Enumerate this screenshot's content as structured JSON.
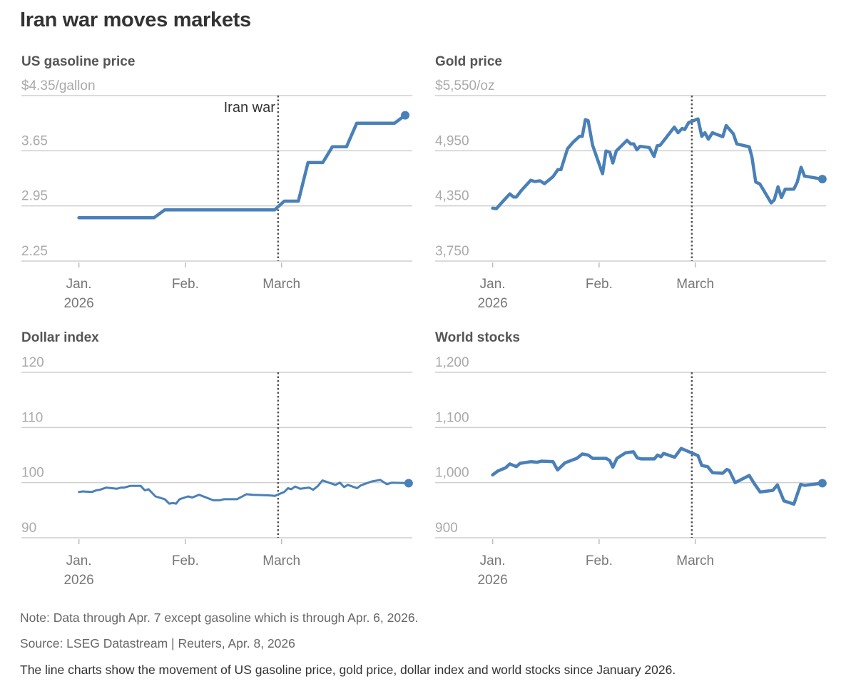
{
  "title": "Iran war moves markets",
  "accent_color": "#4a80b8",
  "event": {
    "label": "Iran war",
    "day": 58
  },
  "x_axis": {
    "ticks": [
      {
        "day": 0,
        "line1": "Jan.",
        "line2": "2026"
      },
      {
        "day": 31,
        "line1": "Feb.",
        "line2": ""
      },
      {
        "day": 59,
        "line1": "March",
        "line2": ""
      }
    ],
    "unit": "days since Jan. 1, 2026"
  },
  "chart_data": [
    {
      "type": "line",
      "title": "US gasoline price",
      "ylabel": "$/gallon",
      "ylim": [
        2.25,
        4.35
      ],
      "yticks": [
        4.35,
        3.65,
        2.95,
        2.25
      ],
      "ytick_labels": [
        "$4.35/gallon",
        "3.65",
        "2.95",
        "2.25"
      ],
      "show_event_label": true,
      "series": [
        {
          "name": "US gasoline price",
          "points": [
            [
              0,
              2.8
            ],
            [
              21.9,
              2.8
            ],
            [
              25,
              2.9
            ],
            [
              57,
              2.9
            ],
            [
              59.8,
              3.01
            ],
            [
              63.9,
              3.01
            ],
            [
              66.7,
              3.5
            ],
            [
              71,
              3.5
            ],
            [
              73.8,
              3.7
            ],
            [
              77.9,
              3.7
            ],
            [
              80.9,
              4.0
            ],
            [
              91.9,
              4.0
            ],
            [
              95,
              4.1
            ]
          ]
        }
      ]
    },
    {
      "type": "line",
      "title": "Gold price",
      "ylabel": "$/oz",
      "ylim": [
        3750,
        5550
      ],
      "yticks": [
        5550,
        4950,
        4350,
        3750
      ],
      "ytick_labels": [
        "$5,550/oz",
        "4,950",
        "4,350",
        "3,750"
      ],
      "show_event_label": false,
      "series": [
        {
          "name": "Gold price",
          "points": [
            [
              0,
              4325
            ],
            [
              1.1,
              4320
            ],
            [
              3.1,
              4403
            ],
            [
              5,
              4480
            ],
            [
              6.1,
              4447
            ],
            [
              6.9,
              4447
            ],
            [
              8.4,
              4519
            ],
            [
              11.1,
              4628
            ],
            [
              12.3,
              4615
            ],
            [
              13.8,
              4623
            ],
            [
              15.1,
              4592
            ],
            [
              17.6,
              4669
            ],
            [
              19,
              4745
            ],
            [
              19.9,
              4745
            ],
            [
              21.8,
              4972
            ],
            [
              23.4,
              5042
            ],
            [
              25.3,
              5107
            ],
            [
              26.1,
              5107
            ],
            [
              27,
              5288
            ],
            [
              27.8,
              5278
            ],
            [
              29.1,
              5011
            ],
            [
              32,
              4700
            ],
            [
              33,
              4947
            ],
            [
              34.1,
              4934
            ],
            [
              35,
              4817
            ],
            [
              36,
              4947
            ],
            [
              39.1,
              5063
            ],
            [
              40.2,
              5024
            ],
            [
              41.1,
              5024
            ],
            [
              42,
              4960
            ],
            [
              42.9,
              4998
            ],
            [
              45.6,
              4985
            ],
            [
              47,
              4887
            ],
            [
              47.9,
              5003
            ],
            [
              48.8,
              5011
            ],
            [
              52.9,
              5206
            ],
            [
              54,
              5146
            ],
            [
              55.2,
              5193
            ],
            [
              55.9,
              5180
            ],
            [
              57.1,
              5257
            ],
            [
              59.8,
              5296
            ],
            [
              60.9,
              5107
            ],
            [
              61.8,
              5146
            ],
            [
              62.8,
              5076
            ],
            [
              64,
              5146
            ],
            [
              67,
              5102
            ],
            [
              68,
              5224
            ],
            [
              70.1,
              5133
            ],
            [
              71.1,
              5024
            ],
            [
              74.7,
              4993
            ],
            [
              75.5,
              4882
            ],
            [
              76.6,
              4610
            ],
            [
              77.8,
              4589
            ],
            [
              81.1,
              4382
            ],
            [
              82,
              4416
            ],
            [
              83.1,
              4558
            ],
            [
              84.1,
              4441
            ],
            [
              85.2,
              4532
            ],
            [
              87.7,
              4532
            ],
            [
              88.7,
              4610
            ],
            [
              89.8,
              4770
            ],
            [
              90.8,
              4675
            ],
            [
              96,
              4641
            ]
          ]
        }
      ]
    },
    {
      "type": "line",
      "title": "Dollar index",
      "ylabel": "",
      "ylim": [
        90,
        120
      ],
      "yticks": [
        120,
        110,
        100,
        90
      ],
      "ytick_labels": [
        "120",
        "110",
        "100",
        "90"
      ],
      "show_event_label": false,
      "series": [
        {
          "name": "Dollar index",
          "points": [
            [
              0,
              98.3
            ],
            [
              1.1,
              98.4
            ],
            [
              3.8,
              98.3
            ],
            [
              5,
              98.6
            ],
            [
              6.1,
              98.7
            ],
            [
              8,
              99.1
            ],
            [
              11.1,
              98.9
            ],
            [
              12.3,
              99.1
            ],
            [
              13.2,
              99.1
            ],
            [
              14.9,
              99.4
            ],
            [
              18,
              99.4
            ],
            [
              19.2,
              98.6
            ],
            [
              20.3,
              98.8
            ],
            [
              22.3,
              97.5
            ],
            [
              25,
              97.0
            ],
            [
              26.3,
              96.2
            ],
            [
              27.4,
              96.3
            ],
            [
              28.3,
              96.2
            ],
            [
              29.3,
              97.0
            ],
            [
              31.8,
              97.5
            ],
            [
              33,
              97.3
            ],
            [
              35,
              97.8
            ],
            [
              39.1,
              96.8
            ],
            [
              41,
              96.8
            ],
            [
              42.2,
              97.0
            ],
            [
              46,
              97.0
            ],
            [
              48.8,
              97.9
            ],
            [
              50.6,
              97.8
            ],
            [
              55.2,
              97.7
            ],
            [
              57.1,
              97.6
            ],
            [
              58.2,
              97.9
            ],
            [
              59.8,
              98.3
            ],
            [
              60.9,
              99.0
            ],
            [
              61.8,
              98.8
            ],
            [
              63,
              99.3
            ],
            [
              64.4,
              98.9
            ],
            [
              67,
              99.1
            ],
            [
              68.2,
              98.7
            ],
            [
              69.6,
              99.4
            ],
            [
              70.9,
              100.4
            ],
            [
              72.8,
              100.0
            ],
            [
              74.7,
              99.6
            ],
            [
              76,
              100.0
            ],
            [
              77.2,
              99.2
            ],
            [
              78.3,
              99.6
            ],
            [
              81,
              99.0
            ],
            [
              82.1,
              99.5
            ],
            [
              83.4,
              99.8
            ],
            [
              85.2,
              100.2
            ],
            [
              87.7,
              100.5
            ],
            [
              89.7,
              99.7
            ],
            [
              91.1,
              100.0
            ],
            [
              96,
              99.9
            ]
          ]
        }
      ]
    },
    {
      "type": "line",
      "title": "World stocks",
      "ylabel": "",
      "ylim": [
        900,
        1200
      ],
      "yticks": [
        1200,
        1100,
        1000,
        900
      ],
      "ytick_labels": [
        "1,200",
        "1,100",
        "1,000",
        "900"
      ],
      "show_event_label": false,
      "series": [
        {
          "name": "World stocks",
          "points": [
            [
              0,
              1014
            ],
            [
              1.5,
              1021
            ],
            [
              3.8,
              1027
            ],
            [
              5,
              1034
            ],
            [
              6.9,
              1029
            ],
            [
              8,
              1035
            ],
            [
              11.1,
              1038
            ],
            [
              13,
              1037
            ],
            [
              14.2,
              1039
            ],
            [
              17.6,
              1038
            ],
            [
              18.9,
              1023
            ],
            [
              21.1,
              1036
            ],
            [
              24.5,
              1044
            ],
            [
              26.1,
              1052
            ],
            [
              27.8,
              1050
            ],
            [
              29.1,
              1044
            ],
            [
              33,
              1044
            ],
            [
              34.1,
              1040
            ],
            [
              35,
              1028
            ],
            [
              36.2,
              1044
            ],
            [
              38.7,
              1054
            ],
            [
              41,
              1056
            ],
            [
              42.1,
              1045
            ],
            [
              43.3,
              1043
            ],
            [
              47.1,
              1043
            ],
            [
              48,
              1050
            ],
            [
              49,
              1047
            ],
            [
              49.8,
              1053
            ],
            [
              53,
              1046
            ],
            [
              54.9,
              1062
            ],
            [
              59.8,
              1049
            ],
            [
              60.9,
              1031
            ],
            [
              62.6,
              1029
            ],
            [
              64,
              1018
            ],
            [
              67,
              1017
            ],
            [
              68.2,
              1024
            ],
            [
              68.9,
              1022
            ],
            [
              70.6,
              1000
            ],
            [
              74.7,
              1013
            ],
            [
              76.2,
              998
            ],
            [
              77.9,
              983
            ],
            [
              81.6,
              986
            ],
            [
              82.9,
              996
            ],
            [
              84.8,
              967
            ],
            [
              87.7,
              961
            ],
            [
              89.7,
              997
            ],
            [
              90.8,
              995
            ],
            [
              96,
              999
            ]
          ]
        }
      ]
    }
  ],
  "footer": {
    "note": "Note: Data through Apr. 7 except gasoline which is through Apr. 6, 2026.",
    "source": "Source: LSEG Datastream | Reuters, Apr. 8, 2026",
    "description": "The line charts show the movement of US gasoline price, gold price, dollar index and world stocks since January 2026."
  }
}
